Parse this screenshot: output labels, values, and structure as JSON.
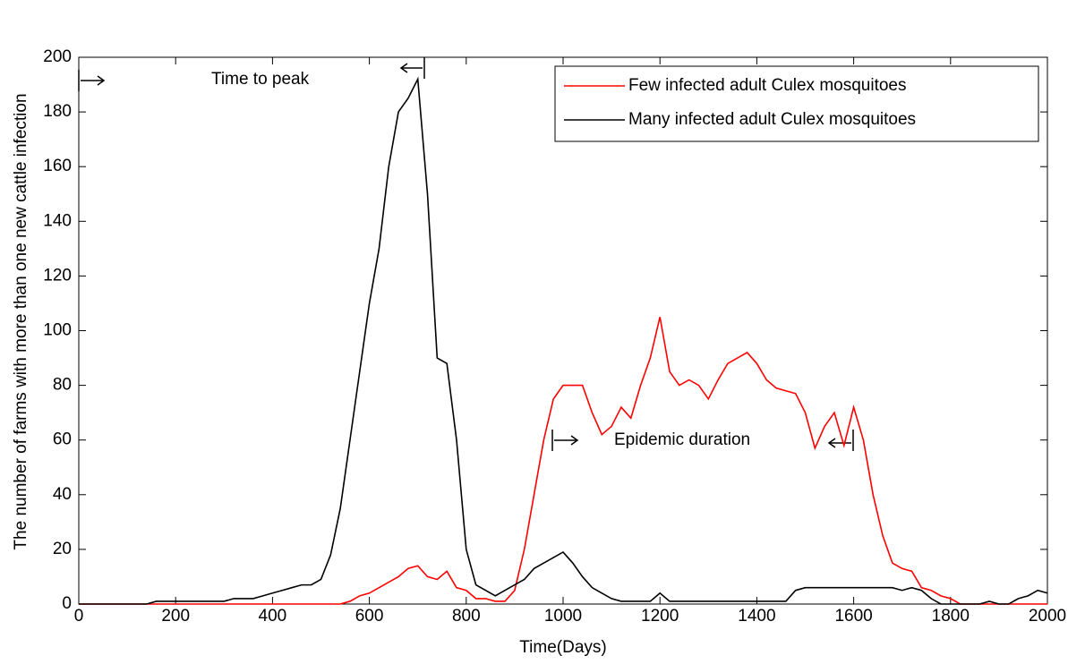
{
  "chart_data": {
    "type": "line",
    "xlabel": "Time(Days)",
    "ylabel": "The number of farms with more than one new cattle infection",
    "x": [
      0,
      20,
      40,
      60,
      80,
      100,
      120,
      140,
      160,
      180,
      200,
      220,
      240,
      260,
      280,
      300,
      320,
      340,
      360,
      380,
      400,
      420,
      440,
      460,
      480,
      500,
      520,
      540,
      560,
      580,
      600,
      620,
      640,
      660,
      680,
      700,
      720,
      740,
      760,
      780,
      800,
      820,
      840,
      860,
      880,
      900,
      920,
      940,
      960,
      980,
      1000,
      1020,
      1040,
      1060,
      1080,
      1100,
      1120,
      1140,
      1160,
      1180,
      1200,
      1220,
      1240,
      1260,
      1280,
      1300,
      1320,
      1340,
      1360,
      1380,
      1400,
      1420,
      1440,
      1460,
      1480,
      1500,
      1520,
      1540,
      1560,
      1580,
      1600,
      1620,
      1640,
      1660,
      1680,
      1700,
      1720,
      1740,
      1760,
      1780,
      1800,
      1820,
      1840,
      1860,
      1880,
      1900,
      1920,
      1940,
      1960,
      1980,
      2000
    ],
    "series": [
      {
        "name": "Few infected adult Culex mosquitoes",
        "color": "#ff0000",
        "values": [
          0,
          0,
          0,
          0,
          0,
          0,
          0,
          0,
          0,
          0,
          0,
          0,
          0,
          0,
          0,
          0,
          0,
          0,
          0,
          0,
          0,
          0,
          0,
          0,
          0,
          0,
          0,
          0,
          1,
          3,
          4,
          6,
          8,
          10,
          13,
          14,
          10,
          9,
          12,
          6,
          5,
          2,
          2,
          1,
          1,
          5,
          20,
          40,
          60,
          75,
          80,
          80,
          80,
          70,
          62,
          65,
          72,
          68,
          80,
          90,
          105,
          85,
          80,
          82,
          80,
          75,
          82,
          88,
          90,
          92,
          88,
          82,
          79,
          78,
          77,
          70,
          57,
          65,
          70,
          58,
          72,
          60,
          40,
          25,
          15,
          13,
          12,
          6,
          5,
          3,
          2,
          0,
          0,
          0,
          0,
          0,
          0,
          0,
          0,
          0,
          0
        ]
      },
      {
        "name": "Many infected adult Culex mosquitoes",
        "color": "#000000",
        "values": [
          0,
          0,
          0,
          0,
          0,
          0,
          0,
          0,
          1,
          1,
          1,
          1,
          1,
          1,
          1,
          1,
          2,
          2,
          2,
          3,
          4,
          5,
          6,
          7,
          7,
          9,
          18,
          35,
          60,
          85,
          110,
          130,
          160,
          180,
          185,
          192,
          150,
          90,
          88,
          60,
          20,
          7,
          5,
          3,
          5,
          7,
          9,
          13,
          15,
          17,
          19,
          15,
          10,
          6,
          4,
          2,
          1,
          1,
          1,
          1,
          4,
          1,
          1,
          1,
          1,
          1,
          1,
          1,
          1,
          1,
          1,
          1,
          1,
          1,
          5,
          6,
          6,
          6,
          6,
          6,
          6,
          6,
          6,
          6,
          6,
          5,
          6,
          5,
          2,
          0,
          0,
          0,
          0,
          0,
          1,
          0,
          0,
          2,
          3,
          5,
          4
        ]
      }
    ],
    "annotations": [
      "Time to peak",
      "Epidemic duration"
    ],
    "xlim": [
      0,
      2000
    ],
    "xticks": [
      0,
      200,
      400,
      600,
      800,
      1000,
      1200,
      1400,
      1600,
      1800,
      2000
    ],
    "ylim": [
      0,
      200
    ],
    "yticks": [
      0,
      20,
      40,
      60,
      80,
      100,
      120,
      140,
      160,
      180,
      200
    ],
    "grid": false,
    "legend": "upper right"
  }
}
